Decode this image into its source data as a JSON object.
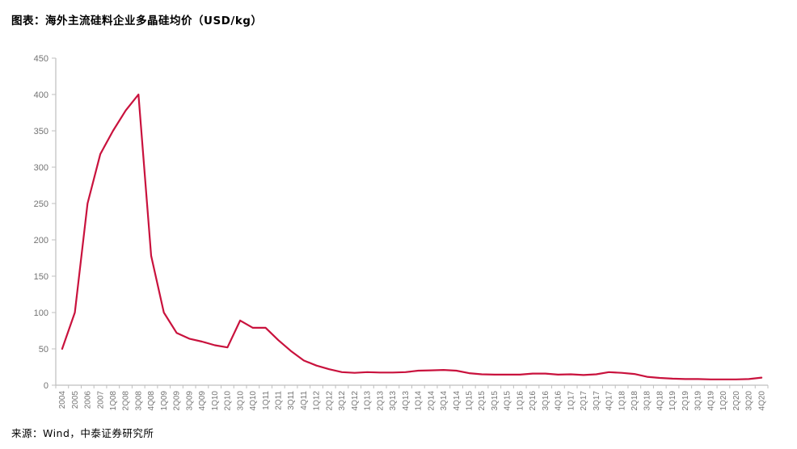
{
  "header": {
    "title": "图表：海外主流硅料企业多晶硅均价（USD/kg）"
  },
  "footer": {
    "source": "来源：Wind，中泰证券研究所"
  },
  "colors": {
    "line": "#C9123D",
    "axis": "#BFBFBF",
    "tick_label": "#737373",
    "title": "#000000"
  },
  "chart_data": {
    "type": "line",
    "title": "海外主流硅料企业多晶硅均价（USD/kg）",
    "xlabel": "",
    "ylabel": "",
    "ylim": [
      0,
      450
    ],
    "ytick_interval": 50,
    "grid": false,
    "legend_position": "none",
    "categories": [
      "2004",
      "2005",
      "2006",
      "2007",
      "1Q08",
      "2Q08",
      "3Q08",
      "4Q08",
      "1Q09",
      "2Q09",
      "3Q09",
      "4Q09",
      "1Q10",
      "2Q10",
      "3Q10",
      "4Q10",
      "1Q11",
      "2Q11",
      "3Q11",
      "4Q11",
      "1Q12",
      "2Q12",
      "3Q12",
      "4Q12",
      "1Q13",
      "2Q13",
      "3Q13",
      "4Q13",
      "1Q14",
      "2Q14",
      "3Q14",
      "4Q14",
      "1Q15",
      "2Q15",
      "3Q15",
      "4Q15",
      "1Q16",
      "2Q16",
      "3Q16",
      "4Q16",
      "1Q17",
      "2Q17",
      "3Q17",
      "4Q17",
      "1Q18",
      "2Q18",
      "3Q18",
      "4Q18",
      "1Q19",
      "2Q19",
      "3Q19",
      "4Q19",
      "1Q20",
      "2Q20",
      "3Q20",
      "4Q20"
    ],
    "series": [
      {
        "name": "海外主流硅料企业多晶硅均价 (USD/kg)",
        "values": [
          50,
          100,
          250,
          318,
          350,
          378,
          400,
          178,
          100,
          72,
          64,
          60,
          55,
          52,
          89,
          79,
          79,
          62,
          47,
          34,
          27,
          22,
          18,
          17,
          18,
          17.5,
          17.5,
          18,
          20,
          20.5,
          21,
          20,
          16.5,
          15,
          14.5,
          14.5,
          14.5,
          16,
          16,
          14.5,
          15,
          14,
          15,
          18,
          17,
          15.5,
          11.5,
          10,
          9,
          8.5,
          8.5,
          8,
          8,
          8,
          8.5,
          10.5
        ]
      }
    ]
  }
}
